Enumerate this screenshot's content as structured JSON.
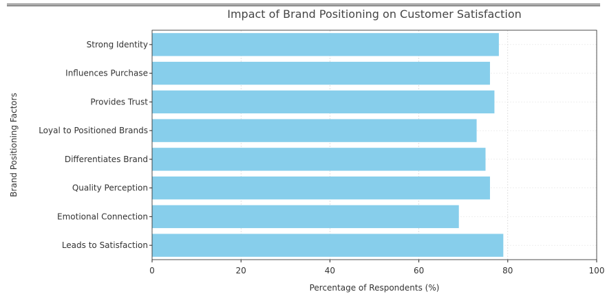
{
  "chart_data": {
    "type": "bar",
    "orientation": "horizontal",
    "title": "Impact of Brand Positioning on Customer Satisfaction",
    "xlabel": "Percentage of Respondents (%)",
    "ylabel": "Brand Positioning Factors",
    "categories": [
      "Strong Identity",
      "Influences Purchase",
      "Provides Trust",
      "Loyal to Positioned Brands",
      "Differentiates Brand",
      "Quality Perception",
      "Emotional Connection",
      "Leads to Satisfaction"
    ],
    "values": [
      78,
      76,
      77,
      73,
      75,
      76,
      69,
      79
    ],
    "xlim": [
      0,
      100
    ],
    "xticks": [
      0,
      20,
      40,
      60,
      80,
      100
    ],
    "grid": true,
    "bar_color": "#87ceeb"
  }
}
